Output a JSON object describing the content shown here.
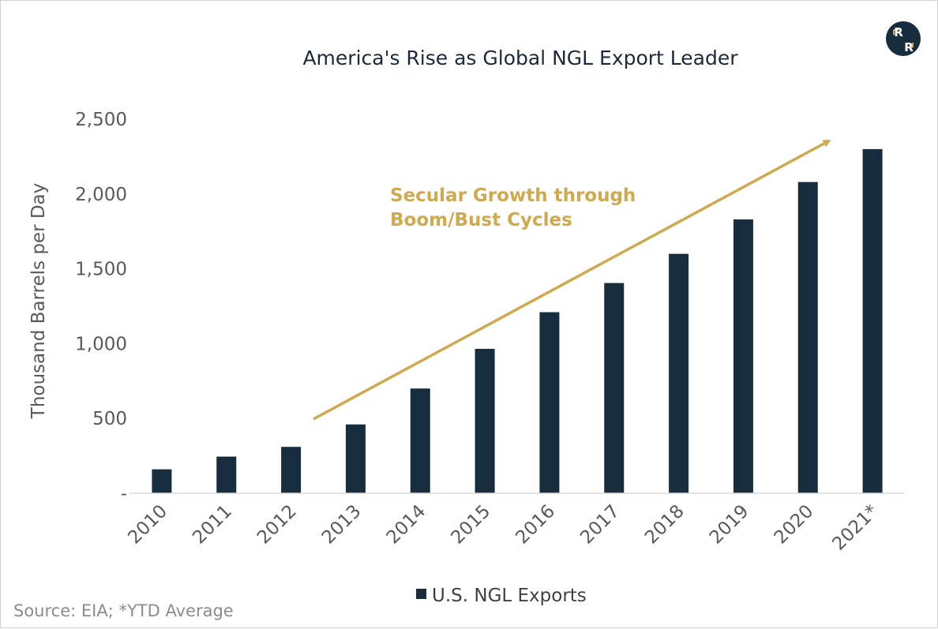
{
  "chart_data": {
    "type": "bar",
    "title": "America's Rise as Global NGL Export Leader",
    "ylabel": "Thousand Barrels per Day",
    "xlabel": "",
    "categories": [
      "2010",
      "2011",
      "2012",
      "2013",
      "2014",
      "2015",
      "2016",
      "2017",
      "2018",
      "2019",
      "2020",
      "2021*"
    ],
    "series": [
      {
        "name": "U.S. NGL Exports",
        "values": [
          160,
          245,
          310,
          460,
          700,
          965,
          1210,
          1405,
          1600,
          1830,
          2080,
          2300
        ],
        "color": "#172d3e"
      }
    ],
    "ylim": [
      0,
      2500
    ],
    "yticks": [
      {
        "value": 0,
        "label": "-"
      },
      {
        "value": 500,
        "label": "500"
      },
      {
        "value": 1000,
        "label": "1,000"
      },
      {
        "value": 1500,
        "label": "1,500"
      },
      {
        "value": 2000,
        "label": "2,000"
      },
      {
        "value": 2500,
        "label": "2,500"
      }
    ],
    "grid": false,
    "legend_position": "bottom",
    "annotation": {
      "lines": [
        "Secular Growth through",
        "Boom/Bust Cycles"
      ],
      "color": "#d0a94e"
    }
  },
  "source_note": "Source: EIA; *YTD Average",
  "logo": {
    "letters": [
      "R",
      "R"
    ],
    "color": "#172d3e",
    "accent": "#d0a94e"
  }
}
